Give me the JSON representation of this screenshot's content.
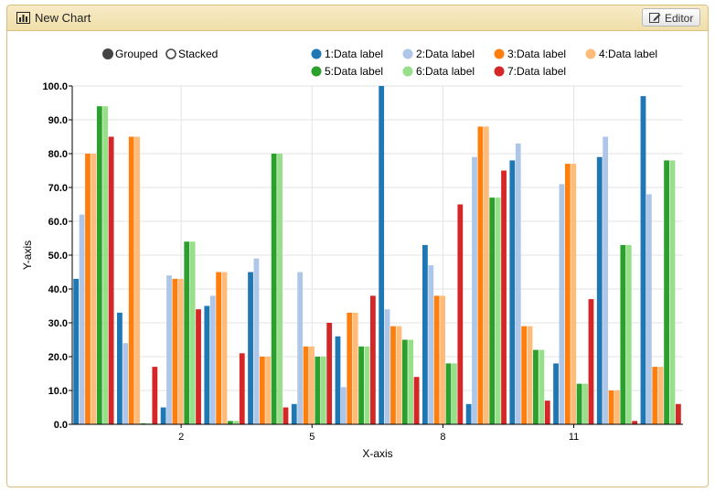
{
  "header": {
    "title": "New Chart",
    "title_icon": "bar-chart-icon",
    "editor_label": "Editor",
    "editor_icon": "edit-icon"
  },
  "controls": {
    "modes": [
      {
        "label": "Grouped",
        "selected": true
      },
      {
        "label": "Stacked",
        "selected": false
      }
    ]
  },
  "chart_data": {
    "type": "bar",
    "mode": "grouped",
    "xlabel": "X-axis",
    "ylabel": "Y-axis",
    "ylim": [
      0,
      100
    ],
    "yticks": [
      "0.0",
      "10.0",
      "20.0",
      "30.0",
      "40.0",
      "50.0",
      "60.0",
      "70.0",
      "80.0",
      "90.0",
      "100.0"
    ],
    "categories": [
      0,
      1,
      2,
      3,
      4,
      5,
      6,
      7,
      8,
      9,
      10,
      11,
      12,
      13
    ],
    "xtick_labels": [
      {
        "category": 2,
        "label": "2"
      },
      {
        "category": 5,
        "label": "5"
      },
      {
        "category": 8,
        "label": "8"
      },
      {
        "category": 11,
        "label": "11"
      }
    ],
    "grid": true,
    "legend": "top-right",
    "series": [
      {
        "name": "1:Data label",
        "color": "#1f77b4",
        "values": [
          43,
          33,
          5,
          35,
          45,
          6,
          26,
          100,
          53,
          6,
          78,
          18,
          79,
          97
        ]
      },
      {
        "name": "2:Data label",
        "color": "#aec7e8",
        "values": [
          62,
          24,
          44,
          38,
          49,
          45,
          11,
          34,
          47,
          79,
          83,
          71,
          85,
          68
        ]
      },
      {
        "name": "3:Data label",
        "color": "#ff7f0e",
        "values": [
          80,
          85,
          43,
          45,
          20,
          23,
          33,
          29,
          38,
          88,
          29,
          77,
          10,
          17
        ]
      },
      {
        "name": "4:Data label",
        "color": "#ffbb78",
        "values": [
          80,
          85,
          43,
          45,
          20,
          23,
          33,
          29,
          38,
          88,
          29,
          77,
          10,
          17
        ]
      },
      {
        "name": "5:Data label",
        "color": "#2ca02c",
        "values": [
          94,
          0.3,
          54,
          1,
          80,
          20,
          23,
          25,
          18,
          67,
          22,
          12,
          53,
          78
        ]
      },
      {
        "name": "6:Data label",
        "color": "#98df8a",
        "values": [
          94,
          0.3,
          54,
          1,
          80,
          20,
          23,
          25,
          18,
          67,
          22,
          12,
          53,
          78
        ]
      },
      {
        "name": "7:Data label",
        "color": "#d62728",
        "values": [
          85,
          17,
          34,
          21,
          5,
          30,
          38,
          14,
          65,
          75,
          7,
          37,
          1,
          6
        ]
      }
    ]
  }
}
